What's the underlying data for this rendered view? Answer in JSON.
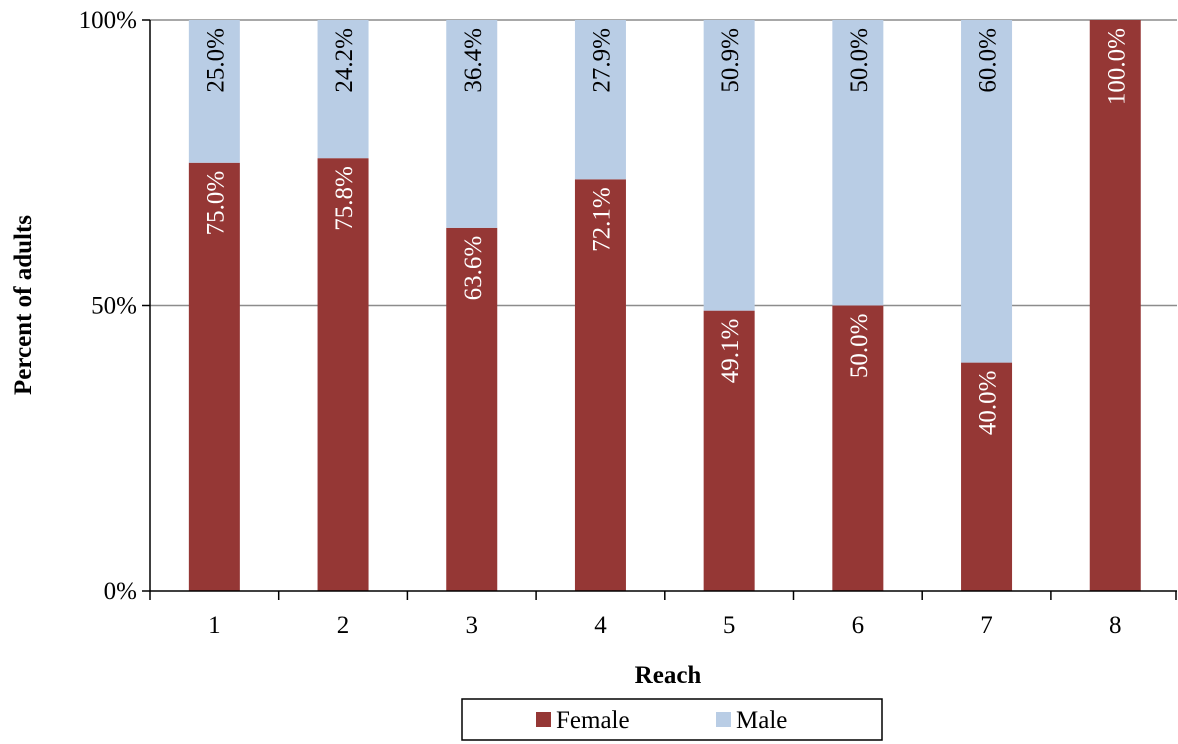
{
  "chart_data": {
    "type": "bar",
    "stacked": true,
    "percent_stacked": true,
    "categories": [
      "1",
      "2",
      "3",
      "4",
      "5",
      "6",
      "7",
      "8"
    ],
    "series": [
      {
        "name": "Female",
        "color": "#953735",
        "label_color": "#ffffff",
        "values": [
          75.0,
          75.8,
          63.6,
          72.1,
          49.1,
          50.0,
          40.0,
          100.0
        ],
        "labels": [
          "75.0%",
          "75.8%",
          "63.6%",
          "72.1%",
          "49.1%",
          "50.0%",
          "40.0%",
          "100.0%"
        ]
      },
      {
        "name": "Male",
        "color": "#b9cde5",
        "label_color": "#000000",
        "values": [
          25.0,
          24.2,
          36.4,
          27.9,
          50.9,
          50.0,
          60.0,
          0.0
        ],
        "labels": [
          "25.0%",
          "24.2%",
          "36.4%",
          "27.9%",
          "50.9%",
          "50.0%",
          "60.0%",
          ""
        ]
      }
    ],
    "xlabel": "Reach",
    "ylabel": "Percent of adults",
    "ylim": [
      0,
      100
    ],
    "yticks": [
      0,
      50,
      100
    ],
    "ytick_labels": [
      "0%",
      "50%",
      "100%"
    ],
    "grid": true,
    "legend_position": "bottom"
  }
}
